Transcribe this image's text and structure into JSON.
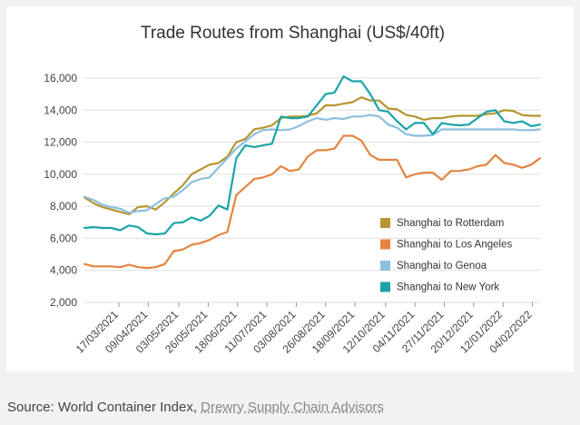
{
  "source": {
    "prefix": "Source: World Container Index, ",
    "link_text": "Drewry Supply Chain Advisors"
  },
  "colors": {
    "rotterdam": "#b59633",
    "los_angeles": "#e58440",
    "genoa": "#8dbfdf",
    "new_york": "#1aa4a6",
    "grid": "#dddddd",
    "axis_text": "#444444"
  },
  "chart_data": {
    "type": "line",
    "title": "Trade Routes from Shanghai (US$/40ft)",
    "xlabel": "",
    "ylabel": "",
    "ylim": [
      2000,
      16000
    ],
    "yticks": [
      2000,
      4000,
      6000,
      8000,
      10000,
      12000,
      14000,
      16000
    ],
    "ytick_labels": [
      "2,000",
      "4,000",
      "6,000",
      "8,000",
      "10,000",
      "12,000",
      "14,000",
      "16,000"
    ],
    "xlim": [
      "2021-02-18",
      "2022-02-10"
    ],
    "xticks": [
      "2021-03-17",
      "2021-04-09",
      "2021-05-03",
      "2021-05-26",
      "2021-06-18",
      "2021-07-11",
      "2021-08-03",
      "2021-08-26",
      "2021-09-18",
      "2021-10-12",
      "2021-11-04",
      "2021-11-27",
      "2021-12-20",
      "2022-01-12",
      "2022-02-04"
    ],
    "xtick_labels": [
      "17/03/2021",
      "09/04/2021",
      "03/05/2021",
      "26/05/2021",
      "18/06/2021",
      "11/07/2021",
      "03/08/2021",
      "26/08/2021",
      "18/09/2021",
      "12/10/2021",
      "04/11/2021",
      "27/11/2021",
      "20/12/2021",
      "12/01/2022",
      "04/02/2022"
    ],
    "grid": true,
    "legend_position": "right",
    "series": [
      {
        "name": "Shanghai to Rotterdam",
        "color_key": "rotterdam",
        "points": [
          [
            "2021-02-18",
            8550
          ],
          [
            "2021-02-25",
            8200
          ],
          [
            "2021-03-04",
            7950
          ],
          [
            "2021-03-11",
            7800
          ],
          [
            "2021-03-18",
            7650
          ],
          [
            "2021-03-25",
            7500
          ],
          [
            "2021-04-01",
            7950
          ],
          [
            "2021-04-08",
            8000
          ],
          [
            "2021-04-15",
            7800
          ],
          [
            "2021-04-22",
            8250
          ],
          [
            "2021-04-29",
            8800
          ],
          [
            "2021-05-06",
            9300
          ],
          [
            "2021-05-13",
            10000
          ],
          [
            "2021-05-20",
            10300
          ],
          [
            "2021-05-27",
            10600
          ],
          [
            "2021-06-03",
            10700
          ],
          [
            "2021-06-10",
            11100
          ],
          [
            "2021-06-17",
            12000
          ],
          [
            "2021-06-24",
            12200
          ],
          [
            "2021-07-01",
            12800
          ],
          [
            "2021-07-08",
            12900
          ],
          [
            "2021-07-15",
            13050
          ],
          [
            "2021-07-22",
            13500
          ],
          [
            "2021-07-29",
            13600
          ],
          [
            "2021-08-05",
            13600
          ],
          [
            "2021-08-12",
            13650
          ],
          [
            "2021-08-19",
            13800
          ],
          [
            "2021-08-26",
            14300
          ],
          [
            "2021-09-02",
            14300
          ],
          [
            "2021-09-09",
            14400
          ],
          [
            "2021-09-16",
            14500
          ],
          [
            "2021-09-23",
            14800
          ],
          [
            "2021-09-30",
            14600
          ],
          [
            "2021-10-07",
            14600
          ],
          [
            "2021-10-14",
            14100
          ],
          [
            "2021-10-21",
            14050
          ],
          [
            "2021-10-28",
            13700
          ],
          [
            "2021-11-04",
            13600
          ],
          [
            "2021-11-11",
            13400
          ],
          [
            "2021-11-18",
            13500
          ],
          [
            "2021-11-25",
            13500
          ],
          [
            "2021-12-02",
            13600
          ],
          [
            "2021-12-09",
            13650
          ],
          [
            "2021-12-16",
            13650
          ],
          [
            "2021-12-23",
            13650
          ],
          [
            "2021-12-30",
            13750
          ],
          [
            "2022-01-06",
            13800
          ],
          [
            "2022-01-13",
            14000
          ],
          [
            "2022-01-20",
            13950
          ],
          [
            "2022-01-27",
            13700
          ],
          [
            "2022-02-03",
            13650
          ],
          [
            "2022-02-10",
            13650
          ]
        ]
      },
      {
        "name": "Shanghai to Los Angeles",
        "color_key": "los_angeles",
        "points": [
          [
            "2021-02-18",
            4400
          ],
          [
            "2021-02-25",
            4250
          ],
          [
            "2021-03-04",
            4250
          ],
          [
            "2021-03-11",
            4250
          ],
          [
            "2021-03-18",
            4200
          ],
          [
            "2021-03-25",
            4350
          ],
          [
            "2021-04-01",
            4200
          ],
          [
            "2021-04-08",
            4150
          ],
          [
            "2021-04-15",
            4200
          ],
          [
            "2021-04-22",
            4400
          ],
          [
            "2021-04-29",
            5200
          ],
          [
            "2021-05-06",
            5300
          ],
          [
            "2021-05-13",
            5600
          ],
          [
            "2021-05-20",
            5700
          ],
          [
            "2021-05-27",
            5900
          ],
          [
            "2021-06-03",
            6200
          ],
          [
            "2021-06-10",
            6400
          ],
          [
            "2021-06-17",
            8700
          ],
          [
            "2021-06-24",
            9200
          ],
          [
            "2021-07-01",
            9700
          ],
          [
            "2021-07-08",
            9800
          ],
          [
            "2021-07-15",
            10000
          ],
          [
            "2021-07-22",
            10500
          ],
          [
            "2021-07-29",
            10200
          ],
          [
            "2021-08-05",
            10300
          ],
          [
            "2021-08-12",
            11100
          ],
          [
            "2021-08-19",
            11500
          ],
          [
            "2021-08-26",
            11500
          ],
          [
            "2021-09-02",
            11600
          ],
          [
            "2021-09-09",
            12400
          ],
          [
            "2021-09-16",
            12400
          ],
          [
            "2021-09-23",
            12100
          ],
          [
            "2021-09-30",
            11200
          ],
          [
            "2021-10-07",
            10900
          ],
          [
            "2021-10-14",
            10900
          ],
          [
            "2021-10-21",
            10900
          ],
          [
            "2021-10-28",
            9800
          ],
          [
            "2021-11-04",
            10000
          ],
          [
            "2021-11-11",
            10100
          ],
          [
            "2021-11-18",
            10100
          ],
          [
            "2021-11-25",
            9650
          ],
          [
            "2021-12-02",
            10200
          ],
          [
            "2021-12-09",
            10200
          ],
          [
            "2021-12-16",
            10300
          ],
          [
            "2021-12-23",
            10500
          ],
          [
            "2021-12-30",
            10600
          ],
          [
            "2022-01-06",
            11200
          ],
          [
            "2022-01-13",
            10700
          ],
          [
            "2022-01-20",
            10600
          ],
          [
            "2022-01-27",
            10400
          ],
          [
            "2022-02-03",
            10600
          ],
          [
            "2022-02-10",
            11000
          ]
        ]
      },
      {
        "name": "Shanghai to Genoa",
        "color_key": "genoa",
        "points": [
          [
            "2021-02-18",
            8600
          ],
          [
            "2021-02-25",
            8400
          ],
          [
            "2021-03-04",
            8100
          ],
          [
            "2021-03-11",
            7950
          ],
          [
            "2021-03-18",
            7850
          ],
          [
            "2021-03-25",
            7600
          ],
          [
            "2021-04-01",
            7700
          ],
          [
            "2021-04-08",
            7750
          ],
          [
            "2021-04-15",
            8150
          ],
          [
            "2021-04-22",
            8500
          ],
          [
            "2021-04-29",
            8600
          ],
          [
            "2021-05-06",
            9000
          ],
          [
            "2021-05-13",
            9500
          ],
          [
            "2021-05-20",
            9700
          ],
          [
            "2021-05-27",
            9800
          ],
          [
            "2021-06-03",
            10400
          ],
          [
            "2021-06-10",
            11000
          ],
          [
            "2021-06-17",
            11600
          ],
          [
            "2021-06-24",
            12050
          ],
          [
            "2021-07-01",
            12500
          ],
          [
            "2021-07-08",
            12750
          ],
          [
            "2021-07-15",
            12800
          ],
          [
            "2021-07-22",
            12750
          ],
          [
            "2021-07-29",
            12800
          ],
          [
            "2021-08-05",
            13000
          ],
          [
            "2021-08-12",
            13300
          ],
          [
            "2021-08-19",
            13500
          ],
          [
            "2021-08-26",
            13400
          ],
          [
            "2021-09-02",
            13500
          ],
          [
            "2021-09-09",
            13450
          ],
          [
            "2021-09-16",
            13600
          ],
          [
            "2021-09-23",
            13600
          ],
          [
            "2021-09-30",
            13700
          ],
          [
            "2021-10-07",
            13600
          ],
          [
            "2021-10-14",
            13100
          ],
          [
            "2021-10-21",
            12900
          ],
          [
            "2021-10-28",
            12500
          ],
          [
            "2021-11-04",
            12400
          ],
          [
            "2021-11-11",
            12400
          ],
          [
            "2021-11-18",
            12450
          ],
          [
            "2021-11-25",
            12800
          ],
          [
            "2021-12-02",
            12800
          ],
          [
            "2021-12-09",
            12800
          ],
          [
            "2021-12-16",
            12800
          ],
          [
            "2021-12-23",
            12800
          ],
          [
            "2021-12-30",
            12800
          ],
          [
            "2022-01-06",
            12800
          ],
          [
            "2022-01-13",
            12800
          ],
          [
            "2022-01-20",
            12800
          ],
          [
            "2022-01-27",
            12750
          ],
          [
            "2022-02-03",
            12750
          ],
          [
            "2022-02-10",
            12800
          ]
        ]
      },
      {
        "name": "Shanghai to New York",
        "color_key": "new_york",
        "points": [
          [
            "2021-02-18",
            6650
          ],
          [
            "2021-02-25",
            6700
          ],
          [
            "2021-03-04",
            6650
          ],
          [
            "2021-03-11",
            6650
          ],
          [
            "2021-03-18",
            6500
          ],
          [
            "2021-03-25",
            6800
          ],
          [
            "2021-04-01",
            6700
          ],
          [
            "2021-04-08",
            6300
          ],
          [
            "2021-04-15",
            6250
          ],
          [
            "2021-04-22",
            6300
          ],
          [
            "2021-04-29",
            6950
          ],
          [
            "2021-05-06",
            7000
          ],
          [
            "2021-05-13",
            7300
          ],
          [
            "2021-05-20",
            7100
          ],
          [
            "2021-05-27",
            7400
          ],
          [
            "2021-06-03",
            8050
          ],
          [
            "2021-06-10",
            7800
          ],
          [
            "2021-06-17",
            11000
          ],
          [
            "2021-06-24",
            11800
          ],
          [
            "2021-07-01",
            11700
          ],
          [
            "2021-07-08",
            11800
          ],
          [
            "2021-07-15",
            11900
          ],
          [
            "2021-07-22",
            13600
          ],
          [
            "2021-07-29",
            13500
          ],
          [
            "2021-08-05",
            13500
          ],
          [
            "2021-08-12",
            13600
          ],
          [
            "2021-08-19",
            14300
          ],
          [
            "2021-08-26",
            15000
          ],
          [
            "2021-09-02",
            15100
          ],
          [
            "2021-09-09",
            16100
          ],
          [
            "2021-09-16",
            15800
          ],
          [
            "2021-09-23",
            15800
          ],
          [
            "2021-09-30",
            15000
          ],
          [
            "2021-10-07",
            14000
          ],
          [
            "2021-10-14",
            13900
          ],
          [
            "2021-10-21",
            13300
          ],
          [
            "2021-10-28",
            12800
          ],
          [
            "2021-11-04",
            13200
          ],
          [
            "2021-11-11",
            13200
          ],
          [
            "2021-11-18",
            12500
          ],
          [
            "2021-11-25",
            13200
          ],
          [
            "2021-12-02",
            13100
          ],
          [
            "2021-12-09",
            13050
          ],
          [
            "2021-12-16",
            13100
          ],
          [
            "2021-12-23",
            13500
          ],
          [
            "2021-12-30",
            13900
          ],
          [
            "2022-01-06",
            14000
          ],
          [
            "2022-01-13",
            13300
          ],
          [
            "2022-01-20",
            13200
          ],
          [
            "2022-01-27",
            13300
          ],
          [
            "2022-02-03",
            13000
          ],
          [
            "2022-02-10",
            13100
          ]
        ]
      }
    ]
  }
}
